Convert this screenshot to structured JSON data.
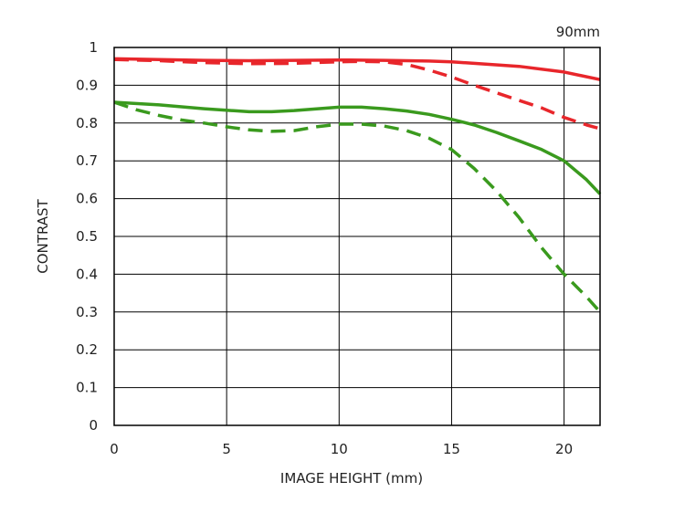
{
  "chart_data": {
    "type": "line",
    "title": "",
    "annotation": "90mm",
    "xlabel": "IMAGE HEIGHT (mm)",
    "ylabel": "CONTRAST",
    "xlim": [
      0,
      21.6
    ],
    "ylim": [
      0,
      1
    ],
    "xticks": [
      0,
      5,
      10,
      15,
      20
    ],
    "xtick_labels": [
      "0",
      "5",
      "10",
      "15",
      "20"
    ],
    "yticks": [
      0,
      0.1,
      0.2,
      0.3,
      0.4,
      0.5,
      0.6,
      0.7,
      0.8,
      0.9,
      1
    ],
    "ytick_labels": [
      "0",
      "0.1",
      "0.2",
      "0.3",
      "0.4",
      "0.5",
      "0.6",
      "0.7",
      "0.8",
      "0.9",
      "1"
    ],
    "grid": true,
    "legend": "none",
    "series": [
      {
        "color": "#e8262b",
        "dashed": false,
        "x": [
          0,
          2,
          4,
          6,
          8,
          10,
          12,
          14,
          15,
          16,
          18,
          20,
          21.6
        ],
        "y": [
          0.97,
          0.968,
          0.966,
          0.965,
          0.966,
          0.967,
          0.966,
          0.964,
          0.962,
          0.958,
          0.95,
          0.935,
          0.915
        ]
      },
      {
        "color": "#e8262b",
        "dashed": true,
        "x": [
          0,
          2,
          4,
          6,
          8,
          10,
          11,
          12,
          13,
          14,
          15,
          16,
          17,
          18,
          19,
          20,
          21,
          21.6
        ],
        "y": [
          0.968,
          0.965,
          0.96,
          0.957,
          0.958,
          0.962,
          0.963,
          0.962,
          0.955,
          0.94,
          0.922,
          0.9,
          0.88,
          0.86,
          0.84,
          0.815,
          0.795,
          0.785
        ]
      },
      {
        "color": "#3a9a1e",
        "dashed": false,
        "x": [
          0,
          2,
          4,
          6,
          7,
          8,
          10,
          11,
          12,
          13,
          14,
          15,
          16,
          17,
          18,
          19,
          20,
          21,
          21.6
        ],
        "y": [
          0.855,
          0.848,
          0.838,
          0.83,
          0.83,
          0.833,
          0.842,
          0.842,
          0.838,
          0.832,
          0.823,
          0.81,
          0.795,
          0.775,
          0.753,
          0.73,
          0.7,
          0.65,
          0.612
        ]
      },
      {
        "color": "#3a9a1e",
        "dashed": true,
        "x": [
          0,
          1,
          2,
          3,
          4,
          5,
          6,
          7,
          8,
          9,
          10,
          11,
          12,
          13,
          14,
          15,
          16,
          17,
          18,
          19,
          20,
          21,
          21.6
        ],
        "y": [
          0.855,
          0.835,
          0.82,
          0.808,
          0.8,
          0.79,
          0.782,
          0.778,
          0.78,
          0.79,
          0.797,
          0.797,
          0.792,
          0.78,
          0.76,
          0.73,
          0.68,
          0.62,
          0.55,
          0.47,
          0.4,
          0.34,
          0.3
        ]
      }
    ]
  }
}
